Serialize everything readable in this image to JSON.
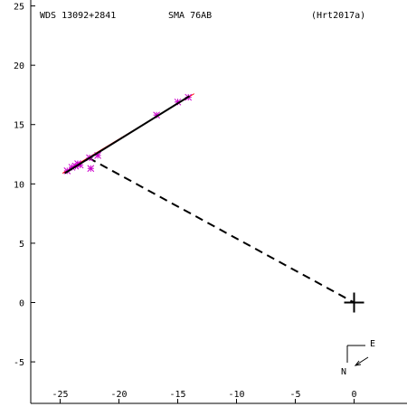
{
  "header": {
    "left": "WDS 13092+2841",
    "center": "SMA  76AB",
    "right": "(Hrt2017a)"
  },
  "colors": {
    "background": "#ffffff",
    "axes": "#000000",
    "observations": "#cc00cc",
    "fit_line": "#ff0000",
    "orbit": "#000000"
  },
  "chart_data": {
    "type": "scatter",
    "title": "",
    "xlabel": "",
    "ylabel": "",
    "xlim": [
      -27.5,
      4.5
    ],
    "ylim": [
      -8.5,
      25.5
    ],
    "x_ticks": [
      -25,
      -20,
      -15,
      -10,
      -5,
      0
    ],
    "y_ticks": [
      25,
      20,
      15,
      10,
      5,
      0,
      -5
    ],
    "x_tick_labels": [
      "-25",
      "-20",
      "-15",
      "-10",
      "-5",
      "0"
    ],
    "y_tick_labels": [
      "25",
      "20",
      "15",
      "10",
      "5",
      "0",
      "-5"
    ],
    "primary_star": {
      "x": 0,
      "y": 0,
      "marker": "plus"
    },
    "observations": [
      {
        "x": -24.4,
        "y": 11.1
      },
      {
        "x": -24.0,
        "y": 11.4
      },
      {
        "x": -23.7,
        "y": 11.5
      },
      {
        "x": -23.5,
        "y": 11.7
      },
      {
        "x": -23.3,
        "y": 11.6
      },
      {
        "x": -22.5,
        "y": 12.2
      },
      {
        "x": -22.4,
        "y": 11.3
      },
      {
        "x": -21.8,
        "y": 12.4
      },
      {
        "x": -16.8,
        "y": 15.8
      },
      {
        "x": -15.0,
        "y": 16.9
      },
      {
        "x": -14.1,
        "y": 17.3
      }
    ],
    "fit_line": [
      {
        "x": -24.8,
        "y": 10.9
      },
      {
        "x": -13.6,
        "y": 17.6
      }
    ],
    "orbit_segment": [
      {
        "x": -24.6,
        "y": 10.9
      },
      {
        "x": -14.0,
        "y": 17.4
      }
    ],
    "residual_dashed": [
      {
        "x": -22.6,
        "y": 12.2
      },
      {
        "x": 0,
        "y": 0
      }
    ]
  },
  "compass": {
    "east_label": "E",
    "north_label": "N"
  }
}
